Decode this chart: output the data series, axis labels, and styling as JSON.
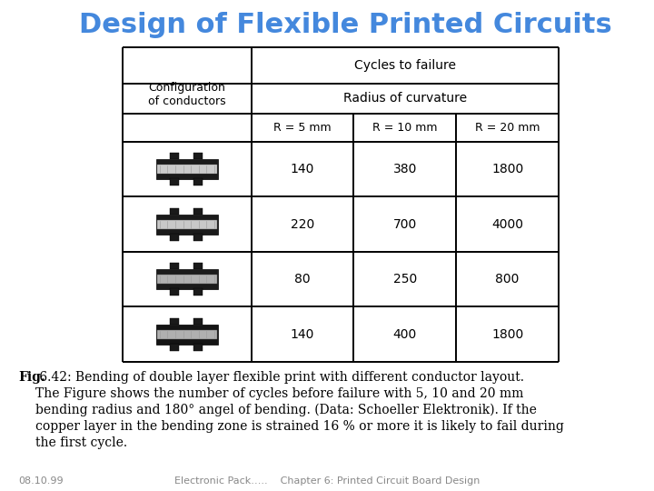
{
  "title": "Design of Flexible Printed Circuits",
  "title_color": "#4488DD",
  "bg_color": "#FFFFFF",
  "table_header_cycles": "Cycles to failure",
  "table_header_radius": "Radius of curvature",
  "col0_header": "Configuration\nof conductors",
  "r_headers": [
    "R = 5 mm",
    "R = 10 mm",
    "R = 20 mm"
  ],
  "data_vals": [
    [
      "140",
      "380",
      "1800"
    ],
    [
      "220",
      "700",
      "4000"
    ],
    [
      "80",
      "250",
      "800"
    ],
    [
      "140",
      "400",
      "1800"
    ]
  ],
  "caption_bold": "Fig.",
  "caption_rest": " 6.42: Bending of double layer flexible print with different conductor layout.\nThe Figure shows the number of cycles before failure with 5, 10 and 20 mm\nbending radius and 180° angel of bending. (Data: Schoeller Elektronik). If the\ncopper layer in the bending zone is strained 16 % or more it is likely to fail during\nthe first cycle.",
  "footer_left": "08.10.99",
  "footer_center": "Electronic Pack…..    Chapter 6: Printed Circuit Board Design",
  "footer_color": "#888888",
  "title_fontsize": 22,
  "table_fontsize": 10,
  "caption_fontsize": 10,
  "footer_fontsize": 8
}
